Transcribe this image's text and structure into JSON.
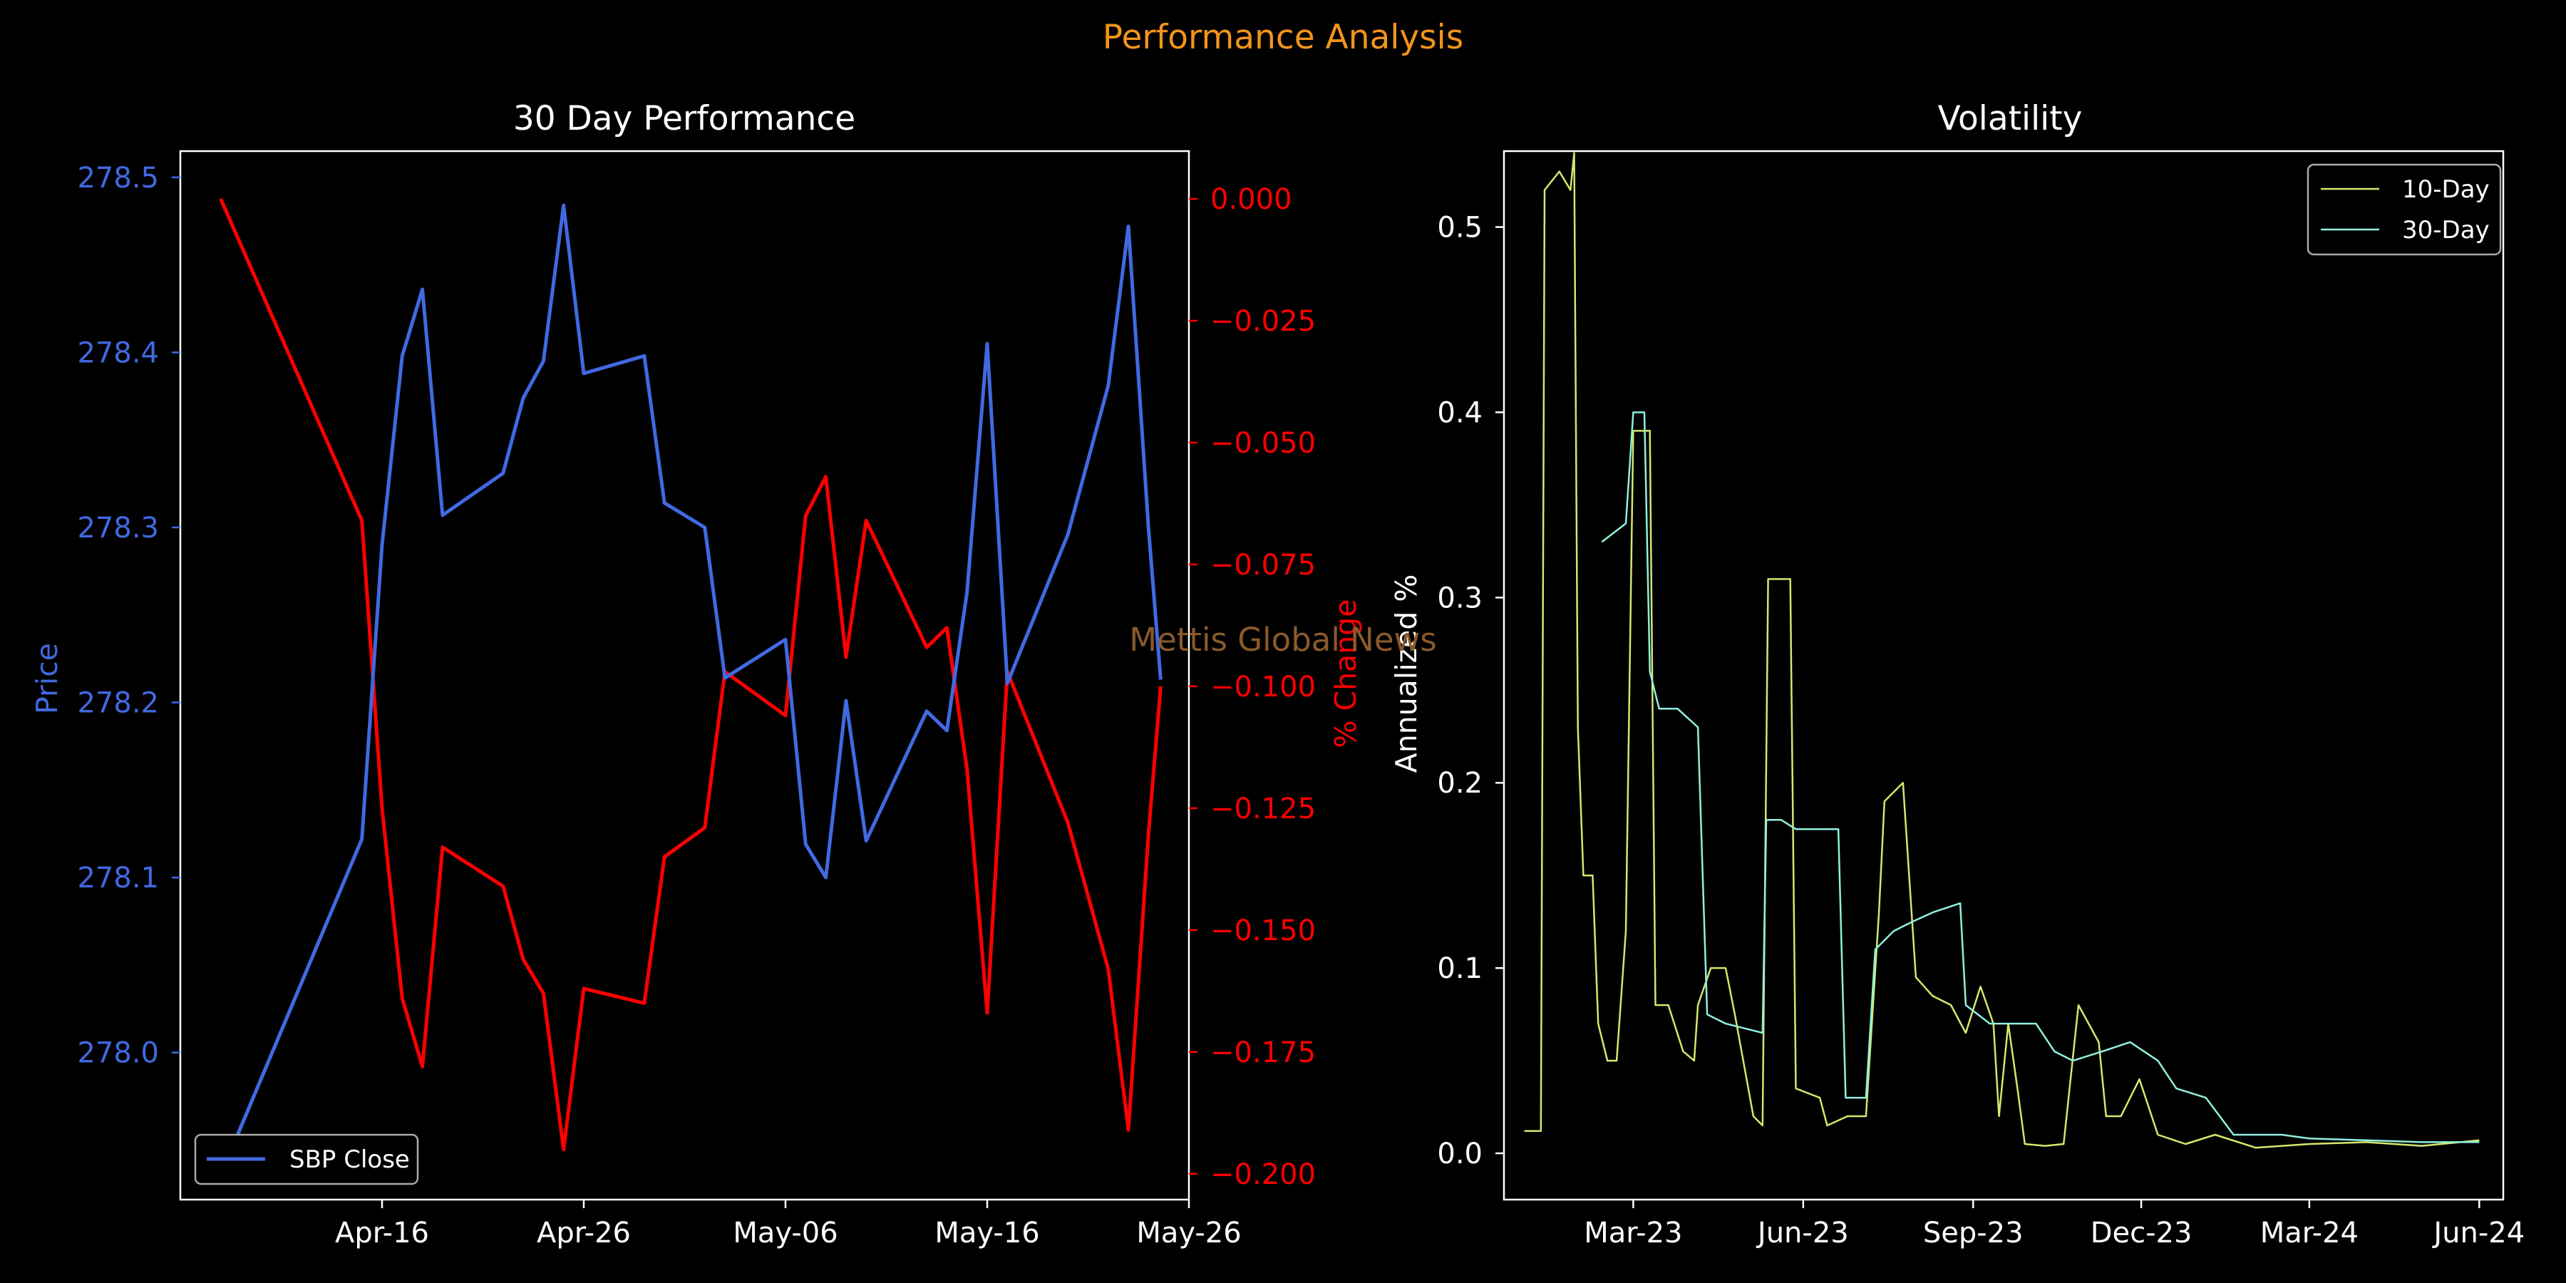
{
  "suptitle": "Performance Analysis",
  "watermark": "Mettis Global News",
  "colors": {
    "background": "#000000",
    "suptitle": "#f2941c",
    "price": "#4169e1",
    "pct_change": "#ff0000",
    "vol10": "#d4e86b",
    "vol30": "#8ff0e0",
    "axis": "#ffffff",
    "watermark": "#8a5a2b"
  },
  "chart_data": [
    {
      "type": "line",
      "title": "30 Day Performance",
      "xlabel": "",
      "ylabel": "Price",
      "ylabel_right": "% Change",
      "x_ticks": [
        "Apr-16",
        "Apr-26",
        "May-06",
        "May-16",
        "May-26"
      ],
      "y_ticks": [
        "278.0",
        "278.1",
        "278.2",
        "278.3",
        "278.4",
        "278.5"
      ],
      "y_right_ticks": [
        "0.000",
        "−0.025",
        "−0.050",
        "−0.075",
        "−0.100",
        "−0.125",
        "−0.150",
        "−0.175",
        "−0.200"
      ],
      "xlim": [
        "2024-04-06",
        "2024-05-26"
      ],
      "ylim": [
        277.916,
        278.515
      ],
      "ylim_right": [
        -0.2053,
        0.0098
      ],
      "legend": {
        "position": "lower-left",
        "entries": [
          "SBP Close"
        ]
      },
      "x": [
        "2024-04-08",
        "2024-04-15",
        "2024-04-16",
        "2024-04-17",
        "2024-04-18",
        "2024-04-19",
        "2024-04-22",
        "2024-04-23",
        "2024-04-24",
        "2024-04-25",
        "2024-04-26",
        "2024-04-29",
        "2024-04-30",
        "2024-05-02",
        "2024-05-03",
        "2024-05-06",
        "2024-05-07",
        "2024-05-08",
        "2024-05-09",
        "2024-05-10",
        "2024-05-13",
        "2024-05-14",
        "2024-05-15",
        "2024-05-16",
        "2024-05-17",
        "2024-05-20",
        "2024-05-22",
        "2024-05-23",
        "2024-05-24"
      ],
      "series": [
        {
          "name": "SBP Close",
          "axis": "left",
          "values": [
            277.93,
            278.122,
            278.29,
            278.398,
            278.436,
            278.307,
            278.331,
            278.374,
            278.395,
            278.484,
            278.388,
            278.398,
            278.314,
            278.3,
            278.214,
            278.236,
            278.119,
            278.1,
            278.201,
            278.121,
            278.195,
            278.184,
            278.263,
            278.405,
            278.211,
            278.296,
            278.381,
            278.472,
            278.299
          ]
        },
        {
          "name": "% Change",
          "axis": "right",
          "values": [
            0.0,
            -0.066,
            -0.125,
            -0.164,
            -0.178,
            -0.133,
            -0.141,
            -0.156,
            -0.163,
            -0.195,
            -0.162,
            -0.165,
            -0.135,
            -0.129,
            -0.097,
            -0.106,
            -0.065,
            -0.057,
            -0.094,
            -0.066,
            -0.092,
            -0.088,
            -0.117,
            -0.167,
            -0.097,
            -0.128,
            -0.158,
            -0.191,
            -0.13
          ]
        }
      ],
      "tail": {
        "price": 278.213,
        "pct": -0.1
      }
    },
    {
      "type": "line",
      "title": "Volatility",
      "xlabel": "",
      "ylabel": "Annualized %",
      "x_ticks": [
        "Mar-23",
        "Jun-23",
        "Sep-23",
        "Dec-23",
        "Mar-24",
        "Jun-24"
      ],
      "y_ticks": [
        "0.0",
        "0.1",
        "0.2",
        "0.3",
        "0.4",
        "0.5"
      ],
      "xlim": [
        "2022-12-21",
        "2024-06-14"
      ],
      "ylim": [
        -0.025,
        0.541
      ],
      "legend": {
        "position": "top-right",
        "entries": [
          "10-Day",
          "30-Day"
        ]
      },
      "series": [
        {
          "name": "10-Day",
          "points": [
            [
              "2023-01-01",
              0.012
            ],
            [
              "2023-01-10",
              0.012
            ],
            [
              "2023-01-12",
              0.52
            ],
            [
              "2023-01-20",
              0.53
            ],
            [
              "2023-01-26",
              0.52
            ],
            [
              "2023-01-28",
              0.54
            ],
            [
              "2023-01-30",
              0.23
            ],
            [
              "2023-02-02",
              0.15
            ],
            [
              "2023-02-07",
              0.15
            ],
            [
              "2023-02-10",
              0.07
            ],
            [
              "2023-02-15",
              0.05
            ],
            [
              "2023-02-20",
              0.05
            ],
            [
              "2023-02-25",
              0.12
            ],
            [
              "2023-03-01",
              0.39
            ],
            [
              "2023-03-10",
              0.39
            ],
            [
              "2023-03-13",
              0.08
            ],
            [
              "2023-03-20",
              0.08
            ],
            [
              "2023-03-28",
              0.055
            ],
            [
              "2023-04-03",
              0.05
            ],
            [
              "2023-04-05",
              0.08
            ],
            [
              "2023-04-12",
              0.1
            ],
            [
              "2023-04-20",
              0.1
            ],
            [
              "2023-04-25",
              0.075
            ],
            [
              "2023-05-05",
              0.02
            ],
            [
              "2023-05-10",
              0.015
            ],
            [
              "2023-05-13",
              0.31
            ],
            [
              "2023-05-25",
              0.31
            ],
            [
              "2023-05-28",
              0.035
            ],
            [
              "2023-06-10",
              0.03
            ],
            [
              "2023-06-14",
              0.015
            ],
            [
              "2023-06-25",
              0.02
            ],
            [
              "2023-07-05",
              0.02
            ],
            [
              "2023-07-12",
              0.13
            ],
            [
              "2023-07-15",
              0.19
            ],
            [
              "2023-07-25",
              0.2
            ],
            [
              "2023-08-01",
              0.095
            ],
            [
              "2023-08-10",
              0.085
            ],
            [
              "2023-08-20",
              0.08
            ],
            [
              "2023-08-28",
              0.065
            ],
            [
              "2023-09-05",
              0.09
            ],
            [
              "2023-09-12",
              0.07
            ],
            [
              "2023-09-15",
              0.02
            ],
            [
              "2023-09-20",
              0.07
            ],
            [
              "2023-09-25",
              0.035
            ],
            [
              "2023-09-29",
              0.005
            ],
            [
              "2023-10-10",
              0.004
            ],
            [
              "2023-10-20",
              0.005
            ],
            [
              "2023-10-28",
              0.08
            ],
            [
              "2023-11-08",
              0.06
            ],
            [
              "2023-11-12",
              0.02
            ],
            [
              "2023-11-20",
              0.02
            ],
            [
              "2023-11-30",
              0.04
            ],
            [
              "2023-12-10",
              0.01
            ],
            [
              "2023-12-25",
              0.005
            ],
            [
              "2024-01-10",
              0.01
            ],
            [
              "2024-02-01",
              0.003
            ],
            [
              "2024-03-01",
              0.005
            ],
            [
              "2024-04-01",
              0.006
            ],
            [
              "2024-05-01",
              0.004
            ],
            [
              "2024-06-01",
              0.007
            ]
          ]
        },
        {
          "name": "30-Day",
          "points": [
            [
              "2023-02-12",
              0.33
            ],
            [
              "2023-02-25",
              0.34
            ],
            [
              "2023-03-01",
              0.4
            ],
            [
              "2023-03-07",
              0.4
            ],
            [
              "2023-03-10",
              0.26
            ],
            [
              "2023-03-15",
              0.24
            ],
            [
              "2023-03-25",
              0.24
            ],
            [
              "2023-04-05",
              0.23
            ],
            [
              "2023-04-10",
              0.075
            ],
            [
              "2023-04-20",
              0.07
            ],
            [
              "2023-05-10",
              0.065
            ],
            [
              "2023-05-12",
              0.18
            ],
            [
              "2023-05-20",
              0.18
            ],
            [
              "2023-05-28",
              0.175
            ],
            [
              "2023-06-20",
              0.175
            ],
            [
              "2023-06-24",
              0.03
            ],
            [
              "2023-07-05",
              0.03
            ],
            [
              "2023-07-10",
              0.11
            ],
            [
              "2023-07-20",
              0.12
            ],
            [
              "2023-07-30",
              0.125
            ],
            [
              "2023-08-10",
              0.13
            ],
            [
              "2023-08-25",
              0.135
            ],
            [
              "2023-08-28",
              0.08
            ],
            [
              "2023-09-10",
              0.07
            ],
            [
              "2023-09-20",
              0.07
            ],
            [
              "2023-10-05",
              0.07
            ],
            [
              "2023-10-15",
              0.055
            ],
            [
              "2023-10-25",
              0.05
            ],
            [
              "2023-11-10",
              0.055
            ],
            [
              "2023-11-25",
              0.06
            ],
            [
              "2023-12-10",
              0.05
            ],
            [
              "2023-12-20",
              0.035
            ],
            [
              "2024-01-05",
              0.03
            ],
            [
              "2024-01-20",
              0.01
            ],
            [
              "2024-02-15",
              0.01
            ],
            [
              "2024-03-01",
              0.008
            ],
            [
              "2024-04-01",
              0.007
            ],
            [
              "2024-05-01",
              0.006
            ],
            [
              "2024-06-01",
              0.006
            ]
          ]
        }
      ]
    }
  ]
}
